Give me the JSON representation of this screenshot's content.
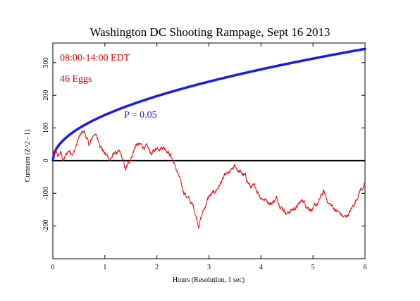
{
  "chart_data": {
    "type": "line",
    "title": "Washington DC Shooting Rampage, Sept 16 2013",
    "xlabel": "Hours (Resolution, 1 sec)",
    "ylabel": "Cumsum (Z^2 - 1)",
    "xlim": [
      0,
      6
    ],
    "ylim": [
      -300,
      360
    ],
    "x_ticks": [
      "0",
      "1",
      "2",
      "3",
      "4",
      "5",
      "6"
    ],
    "y_ticks": [
      "-200",
      "-100",
      "0",
      "100",
      "200",
      "300"
    ],
    "grid": false,
    "annotations": {
      "time_range": "08:00-14:00 EDT",
      "eggs": "46 Eggs",
      "p_label": "P = 0.05"
    },
    "colors": {
      "cumsum": "#ff0000",
      "probability_envelope": "#1a1ae6",
      "baseline": "#000000",
      "annotation": "#e00000",
      "p_label": "#1a1ae6"
    },
    "series": [
      {
        "role": "probability_envelope",
        "formula": "1.645 * sqrt(2 * t_seconds)",
        "x": [
          0,
          0.25,
          0.5,
          1,
          1.5,
          2,
          2.5,
          3,
          3.5,
          4,
          4.5,
          5,
          5.5,
          6
        ],
        "values": [
          0,
          70,
          99,
          140,
          171,
          197,
          221,
          242,
          261,
          279,
          296,
          312,
          327,
          342
        ]
      },
      {
        "role": "cumsum",
        "x": [
          0,
          0.05,
          0.1,
          0.15,
          0.2,
          0.3,
          0.4,
          0.5,
          0.6,
          0.7,
          0.8,
          0.9,
          1.0,
          1.1,
          1.2,
          1.3,
          1.4,
          1.5,
          1.6,
          1.7,
          1.8,
          1.9,
          2.0,
          2.1,
          2.2,
          2.3,
          2.4,
          2.5,
          2.6,
          2.7,
          2.8,
          2.9,
          3.0,
          3.1,
          3.2,
          3.3,
          3.4,
          3.5,
          3.6,
          3.7,
          3.8,
          3.9,
          4.0,
          4.1,
          4.2,
          4.3,
          4.4,
          4.5,
          4.6,
          4.7,
          4.8,
          4.9,
          5.0,
          5.1,
          5.2,
          5.3,
          5.4,
          5.5,
          5.6,
          5.7,
          5.8,
          5.9,
          6.0
        ],
        "values": [
          0,
          30,
          10,
          25,
          0,
          30,
          25,
          70,
          90,
          45,
          85,
          55,
          20,
          5,
          25,
          20,
          -30,
          10,
          50,
          45,
          40,
          20,
          40,
          45,
          35,
          5,
          -40,
          -90,
          -115,
          -140,
          -195,
          -150,
          -110,
          -100,
          -75,
          -50,
          -40,
          -20,
          -35,
          -50,
          -80,
          -85,
          -110,
          -120,
          -130,
          -115,
          -140,
          -160,
          -150,
          -140,
          -120,
          -140,
          -150,
          -130,
          -95,
          -130,
          -145,
          -160,
          -175,
          -160,
          -130,
          -90,
          -75
        ]
      }
    ]
  }
}
